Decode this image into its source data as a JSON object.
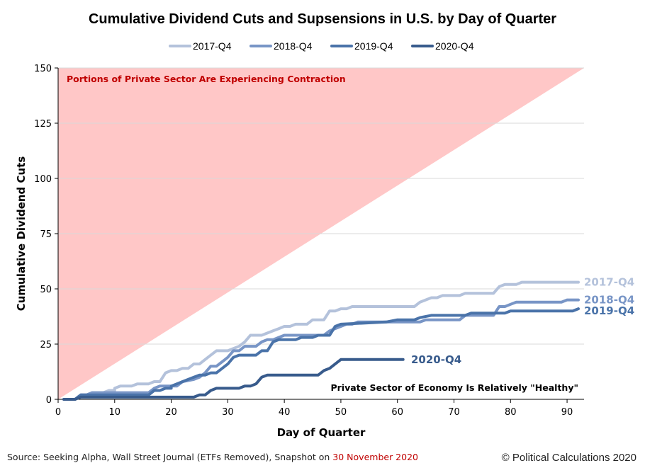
{
  "chart_data": {
    "type": "line",
    "title": "Cumulative Dividend Cuts and Supsensions in U.S. by Day of Quarter",
    "xlabel": "Day of Quarter",
    "ylabel": "Cumulative Dividend Cuts",
    "xlim": [
      0,
      93
    ],
    "ylim": [
      0,
      150
    ],
    "x_ticks": [
      0,
      10,
      20,
      30,
      40,
      50,
      60,
      70,
      80,
      90
    ],
    "y_ticks": [
      0,
      25,
      50,
      75,
      100,
      125,
      150
    ],
    "grid": "horizontal",
    "legend_position": "top",
    "annotations": {
      "contraction": "Portions of Private Sector Are Experiencing Contraction",
      "healthy": "Private Sector of Economy Is Relatively \"Healthy\""
    },
    "series": [
      {
        "name": "2017-Q4",
        "color": "#b4c2db",
        "end_label": "2017-Q4",
        "points": [
          [
            1,
            0
          ],
          [
            3,
            0
          ],
          [
            4,
            2
          ],
          [
            5,
            2
          ],
          [
            6,
            3
          ],
          [
            8,
            3
          ],
          [
            9,
            4
          ],
          [
            10,
            4
          ],
          [
            10,
            5
          ],
          [
            11,
            6
          ],
          [
            13,
            6
          ],
          [
            14,
            7
          ],
          [
            16,
            7
          ],
          [
            17,
            8
          ],
          [
            18,
            8
          ],
          [
            19,
            12
          ],
          [
            20,
            13
          ],
          [
            21,
            13
          ],
          [
            22,
            14
          ],
          [
            23,
            14
          ],
          [
            24,
            16
          ],
          [
            25,
            16
          ],
          [
            26,
            18
          ],
          [
            27,
            20
          ],
          [
            28,
            22
          ],
          [
            30,
            22
          ],
          [
            31,
            23
          ],
          [
            32,
            24
          ],
          [
            33,
            26
          ],
          [
            34,
            29
          ],
          [
            36,
            29
          ],
          [
            37,
            30
          ],
          [
            38,
            31
          ],
          [
            39,
            32
          ],
          [
            40,
            33
          ],
          [
            41,
            33
          ],
          [
            42,
            34
          ],
          [
            44,
            34
          ],
          [
            45,
            36
          ],
          [
            47,
            36
          ],
          [
            48,
            40
          ],
          [
            49,
            40
          ],
          [
            50,
            41
          ],
          [
            51,
            41
          ],
          [
            52,
            42
          ],
          [
            63,
            42
          ],
          [
            64,
            44
          ],
          [
            65,
            45
          ],
          [
            66,
            46
          ],
          [
            67,
            46
          ],
          [
            68,
            47
          ],
          [
            71,
            47
          ],
          [
            72,
            48
          ],
          [
            77,
            48
          ],
          [
            78,
            51
          ],
          [
            79,
            52
          ],
          [
            81,
            52
          ],
          [
            82,
            53
          ],
          [
            92,
            53
          ]
        ]
      },
      {
        "name": "2018-Q4",
        "color": "#7895c6",
        "end_label": "2018-Q4",
        "points": [
          [
            3,
            0
          ],
          [
            4,
            2
          ],
          [
            5,
            2
          ],
          [
            6,
            3
          ],
          [
            16,
            3
          ],
          [
            17,
            5
          ],
          [
            18,
            6
          ],
          [
            19,
            6
          ],
          [
            21,
            6
          ],
          [
            22,
            8
          ],
          [
            24,
            9
          ],
          [
            25,
            10
          ],
          [
            26,
            12
          ],
          [
            27,
            15
          ],
          [
            28,
            15
          ],
          [
            29,
            17
          ],
          [
            30,
            19
          ],
          [
            31,
            22
          ],
          [
            32,
            22
          ],
          [
            33,
            24
          ],
          [
            35,
            24
          ],
          [
            36,
            26
          ],
          [
            37,
            27
          ],
          [
            38,
            27
          ],
          [
            39,
            28
          ],
          [
            40,
            29
          ],
          [
            47,
            29
          ],
          [
            48,
            31
          ],
          [
            50,
            33
          ],
          [
            51,
            34
          ],
          [
            52,
            34
          ],
          [
            53,
            35
          ],
          [
            64,
            35
          ],
          [
            65,
            36
          ],
          [
            71,
            36
          ],
          [
            72,
            38
          ],
          [
            77,
            38
          ],
          [
            78,
            42
          ],
          [
            79,
            42
          ],
          [
            80,
            43
          ],
          [
            81,
            44
          ],
          [
            89,
            44
          ],
          [
            90,
            45
          ],
          [
            92,
            45
          ]
        ]
      },
      {
        "name": "2019-Q4",
        "color": "#4a73a9",
        "end_label": "2019-Q4",
        "points": [
          [
            2,
            0
          ],
          [
            3,
            0
          ],
          [
            4,
            2
          ],
          [
            16,
            2
          ],
          [
            17,
            4
          ],
          [
            18,
            4
          ],
          [
            19,
            5
          ],
          [
            20,
            5
          ],
          [
            20,
            6
          ],
          [
            21,
            7
          ],
          [
            23,
            9
          ],
          [
            24,
            10
          ],
          [
            25,
            11
          ],
          [
            26,
            11
          ],
          [
            27,
            12
          ],
          [
            28,
            12
          ],
          [
            29,
            14
          ],
          [
            30,
            16
          ],
          [
            31,
            19
          ],
          [
            32,
            20
          ],
          [
            35,
            20
          ],
          [
            36,
            22
          ],
          [
            37,
            22
          ],
          [
            38,
            26
          ],
          [
            39,
            27
          ],
          [
            42,
            27
          ],
          [
            43,
            28
          ],
          [
            45,
            28
          ],
          [
            46,
            29
          ],
          [
            48,
            29
          ],
          [
            49,
            33
          ],
          [
            50,
            34
          ],
          [
            58,
            35
          ],
          [
            60,
            36
          ],
          [
            63,
            36
          ],
          [
            64,
            37
          ],
          [
            66,
            38
          ],
          [
            72,
            38
          ],
          [
            73,
            39
          ],
          [
            79,
            39
          ],
          [
            80,
            40
          ],
          [
            91,
            40
          ],
          [
            92,
            41
          ]
        ]
      },
      {
        "name": "2020-Q4",
        "color": "#385b8c",
        "end_label": "2020-Q4",
        "points": [
          [
            1,
            0
          ],
          [
            3,
            0
          ],
          [
            4,
            1
          ],
          [
            24,
            1
          ],
          [
            25,
            2
          ],
          [
            26,
            2
          ],
          [
            27,
            4
          ],
          [
            28,
            5
          ],
          [
            32,
            5
          ],
          [
            33,
            6
          ],
          [
            34,
            6
          ],
          [
            35,
            7
          ],
          [
            36,
            10
          ],
          [
            37,
            11
          ],
          [
            46,
            11
          ],
          [
            47,
            13
          ],
          [
            48,
            14
          ],
          [
            49,
            16
          ],
          [
            50,
            18
          ],
          [
            61,
            18
          ]
        ]
      }
    ]
  },
  "footer": {
    "source_prefix": "Source: Seeking Alpha, Wall Street Journal (ETFs Removed), Snapshot on",
    "snapshot_date": "30 November 2020",
    "copyright": "© Political Calculations 2020"
  }
}
